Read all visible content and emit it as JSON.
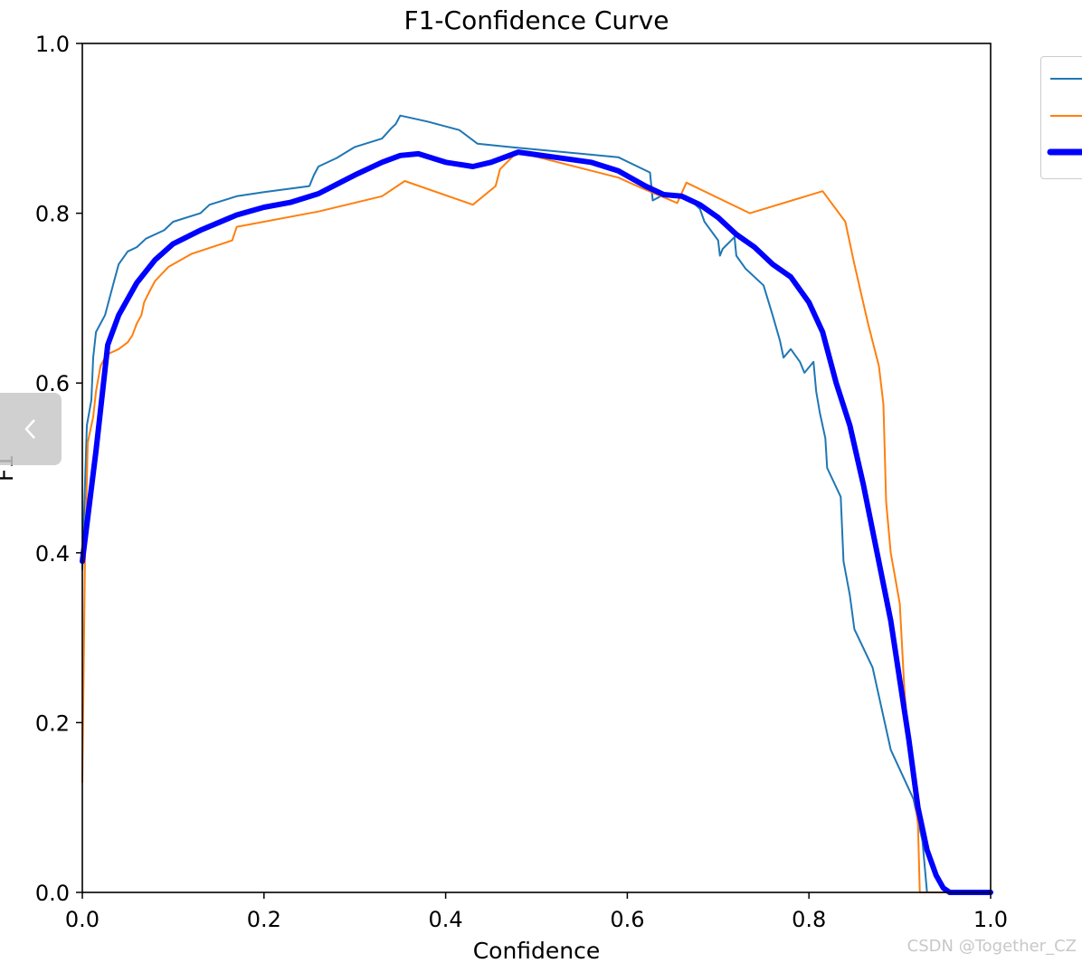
{
  "chart_data": {
    "type": "line",
    "title": "F1-Confidence Curve",
    "xlabel": "Confidence",
    "ylabel": "F1",
    "xlim": [
      0,
      1
    ],
    "ylim": [
      0,
      1
    ],
    "xticks": [
      "0.0",
      "0.2",
      "0.4",
      "0.6",
      "0.8",
      "1.0"
    ],
    "yticks": [
      "0.0",
      "0.2",
      "0.4",
      "0.6",
      "0.8",
      "1.0"
    ],
    "grid": false,
    "legend": "top-right",
    "series": [
      {
        "color": "#1f77b4",
        "width": "thin",
        "points": [
          [
            0.0,
            0.38
          ],
          [
            0.005,
            0.55
          ],
          [
            0.01,
            0.58
          ],
          [
            0.012,
            0.63
          ],
          [
            0.015,
            0.66
          ],
          [
            0.02,
            0.67
          ],
          [
            0.025,
            0.68
          ],
          [
            0.03,
            0.7
          ],
          [
            0.035,
            0.72
          ],
          [
            0.04,
            0.74
          ],
          [
            0.05,
            0.755
          ],
          [
            0.06,
            0.76
          ],
          [
            0.07,
            0.77
          ],
          [
            0.09,
            0.78
          ],
          [
            0.1,
            0.79
          ],
          [
            0.13,
            0.8
          ],
          [
            0.14,
            0.81
          ],
          [
            0.17,
            0.82
          ],
          [
            0.2,
            0.825
          ],
          [
            0.25,
            0.832
          ],
          [
            0.255,
            0.845
          ],
          [
            0.26,
            0.855
          ],
          [
            0.28,
            0.865
          ],
          [
            0.3,
            0.878
          ],
          [
            0.33,
            0.888
          ],
          [
            0.34,
            0.9
          ],
          [
            0.345,
            0.905
          ],
          [
            0.35,
            0.915
          ],
          [
            0.38,
            0.908
          ],
          [
            0.415,
            0.898
          ],
          [
            0.435,
            0.882
          ],
          [
            0.47,
            0.878
          ],
          [
            0.59,
            0.866
          ],
          [
            0.625,
            0.848
          ],
          [
            0.628,
            0.815
          ],
          [
            0.64,
            0.822
          ],
          [
            0.665,
            0.82
          ],
          [
            0.68,
            0.805
          ],
          [
            0.685,
            0.79
          ],
          [
            0.7,
            0.768
          ],
          [
            0.702,
            0.75
          ],
          [
            0.705,
            0.758
          ],
          [
            0.718,
            0.772
          ],
          [
            0.72,
            0.75
          ],
          [
            0.73,
            0.735
          ],
          [
            0.75,
            0.715
          ],
          [
            0.76,
            0.68
          ],
          [
            0.768,
            0.65
          ],
          [
            0.772,
            0.63
          ],
          [
            0.78,
            0.64
          ],
          [
            0.79,
            0.625
          ],
          [
            0.795,
            0.612
          ],
          [
            0.805,
            0.625
          ],
          [
            0.808,
            0.59
          ],
          [
            0.812,
            0.565
          ],
          [
            0.818,
            0.535
          ],
          [
            0.82,
            0.5
          ],
          [
            0.835,
            0.466
          ],
          [
            0.838,
            0.39
          ],
          [
            0.845,
            0.35
          ],
          [
            0.85,
            0.31
          ],
          [
            0.87,
            0.265
          ],
          [
            0.89,
            0.168
          ],
          [
            0.915,
            0.11
          ],
          [
            0.925,
            0.06
          ],
          [
            0.93,
            0.0
          ],
          [
            1.0,
            0.0
          ]
        ]
      },
      {
        "color": "#ff7f0e",
        "width": "thin",
        "points": [
          [
            0.0,
            0.13
          ],
          [
            0.003,
            0.4
          ],
          [
            0.006,
            0.53
          ],
          [
            0.01,
            0.55
          ],
          [
            0.012,
            0.56
          ],
          [
            0.015,
            0.59
          ],
          [
            0.02,
            0.62
          ],
          [
            0.025,
            0.63
          ],
          [
            0.03,
            0.635
          ],
          [
            0.04,
            0.64
          ],
          [
            0.05,
            0.648
          ],
          [
            0.055,
            0.656
          ],
          [
            0.06,
            0.67
          ],
          [
            0.065,
            0.68
          ],
          [
            0.068,
            0.695
          ],
          [
            0.075,
            0.71
          ],
          [
            0.08,
            0.72
          ],
          [
            0.095,
            0.737
          ],
          [
            0.12,
            0.752
          ],
          [
            0.165,
            0.768
          ],
          [
            0.17,
            0.784
          ],
          [
            0.26,
            0.802
          ],
          [
            0.33,
            0.82
          ],
          [
            0.355,
            0.838
          ],
          [
            0.43,
            0.81
          ],
          [
            0.455,
            0.832
          ],
          [
            0.46,
            0.852
          ],
          [
            0.475,
            0.868
          ],
          [
            0.48,
            0.872
          ],
          [
            0.59,
            0.842
          ],
          [
            0.615,
            0.83
          ],
          [
            0.655,
            0.812
          ],
          [
            0.665,
            0.836
          ],
          [
            0.735,
            0.8
          ],
          [
            0.815,
            0.826
          ],
          [
            0.84,
            0.79
          ],
          [
            0.85,
            0.74
          ],
          [
            0.865,
            0.67
          ],
          [
            0.877,
            0.62
          ],
          [
            0.882,
            0.575
          ],
          [
            0.885,
            0.46
          ],
          [
            0.89,
            0.4
          ],
          [
            0.9,
            0.34
          ],
          [
            0.905,
            0.24
          ],
          [
            0.912,
            0.15
          ],
          [
            0.92,
            0.08
          ],
          [
            0.922,
            0.0
          ],
          [
            1.0,
            0.0
          ]
        ]
      },
      {
        "color": "#0000ff",
        "width": "thick",
        "points": [
          [
            0.0,
            0.39
          ],
          [
            0.015,
            0.52
          ],
          [
            0.028,
            0.645
          ],
          [
            0.04,
            0.68
          ],
          [
            0.06,
            0.718
          ],
          [
            0.08,
            0.745
          ],
          [
            0.1,
            0.764
          ],
          [
            0.13,
            0.78
          ],
          [
            0.17,
            0.798
          ],
          [
            0.2,
            0.807
          ],
          [
            0.23,
            0.813
          ],
          [
            0.26,
            0.823
          ],
          [
            0.28,
            0.834
          ],
          [
            0.3,
            0.845
          ],
          [
            0.33,
            0.86
          ],
          [
            0.35,
            0.868
          ],
          [
            0.37,
            0.87
          ],
          [
            0.4,
            0.86
          ],
          [
            0.43,
            0.855
          ],
          [
            0.45,
            0.86
          ],
          [
            0.48,
            0.872
          ],
          [
            0.52,
            0.866
          ],
          [
            0.56,
            0.86
          ],
          [
            0.59,
            0.85
          ],
          [
            0.62,
            0.832
          ],
          [
            0.64,
            0.822
          ],
          [
            0.66,
            0.82
          ],
          [
            0.68,
            0.81
          ],
          [
            0.7,
            0.795
          ],
          [
            0.72,
            0.775
          ],
          [
            0.74,
            0.76
          ],
          [
            0.76,
            0.74
          ],
          [
            0.78,
            0.725
          ],
          [
            0.8,
            0.695
          ],
          [
            0.815,
            0.66
          ],
          [
            0.83,
            0.6
          ],
          [
            0.845,
            0.55
          ],
          [
            0.86,
            0.48
          ],
          [
            0.875,
            0.4
          ],
          [
            0.89,
            0.32
          ],
          [
            0.9,
            0.25
          ],
          [
            0.91,
            0.18
          ],
          [
            0.92,
            0.1
          ],
          [
            0.93,
            0.05
          ],
          [
            0.94,
            0.02
          ],
          [
            0.948,
            0.005
          ],
          [
            0.955,
            0.0
          ],
          [
            1.0,
            0.0
          ]
        ]
      }
    ]
  },
  "watermark": "CSDN @Together_CZ",
  "nav": {
    "prev_icon": "chevron-left-icon"
  }
}
